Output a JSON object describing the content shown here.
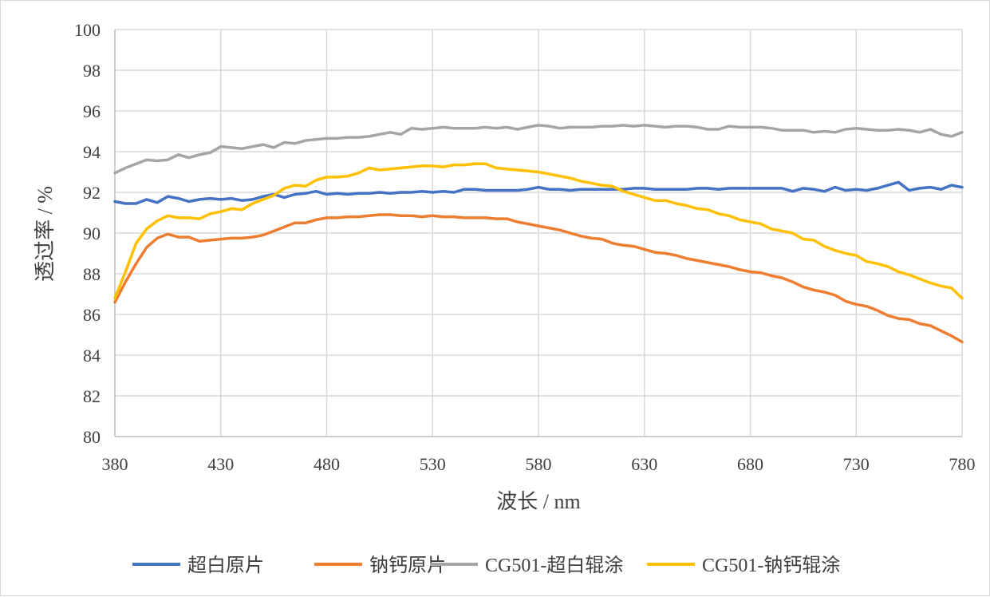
{
  "chart_data": {
    "type": "line",
    "xlabel": "波长 / nm",
    "ylabel": "透过率 / %",
    "xlim": [
      380,
      780
    ],
    "ylim": [
      80,
      100
    ],
    "xticks": [
      380,
      430,
      480,
      530,
      580,
      630,
      680,
      730,
      780
    ],
    "yticks": [
      80,
      82,
      84,
      86,
      88,
      90,
      92,
      94,
      96,
      98,
      100
    ],
    "grid": true,
    "legend_position": "bottom",
    "series": [
      {
        "name": "超白原片",
        "color": "#4472c4",
        "x": [
          380,
          385,
          390,
          395,
          400,
          405,
          410,
          415,
          420,
          425,
          430,
          435,
          440,
          445,
          450,
          455,
          460,
          465,
          470,
          475,
          480,
          485,
          490,
          495,
          500,
          505,
          510,
          515,
          520,
          525,
          530,
          535,
          540,
          545,
          550,
          555,
          560,
          565,
          570,
          575,
          580,
          585,
          590,
          595,
          600,
          605,
          610,
          615,
          620,
          625,
          630,
          635,
          640,
          645,
          650,
          655,
          660,
          665,
          670,
          675,
          680,
          685,
          690,
          695,
          700,
          705,
          710,
          715,
          720,
          725,
          730,
          735,
          740,
          745,
          750,
          755,
          760,
          765,
          770,
          775,
          780
        ],
        "y": [
          91.55,
          91.45,
          91.45,
          91.65,
          91.5,
          91.8,
          91.7,
          91.55,
          91.65,
          91.7,
          91.65,
          91.7,
          91.6,
          91.65,
          91.8,
          91.9,
          91.75,
          91.9,
          91.95,
          92.05,
          91.9,
          91.95,
          91.9,
          91.95,
          91.95,
          92.0,
          91.95,
          92.0,
          92.0,
          92.05,
          92.0,
          92.05,
          92.0,
          92.15,
          92.15,
          92.1,
          92.1,
          92.1,
          92.1,
          92.15,
          92.25,
          92.15,
          92.15,
          92.1,
          92.15,
          92.15,
          92.15,
          92.15,
          92.15,
          92.2,
          92.2,
          92.15,
          92.15,
          92.15,
          92.15,
          92.2,
          92.2,
          92.15,
          92.2,
          92.2,
          92.2,
          92.2,
          92.2,
          92.2,
          92.05,
          92.2,
          92.15,
          92.05,
          92.25,
          92.1,
          92.15,
          92.1,
          92.2,
          92.35,
          92.5,
          92.1,
          92.2,
          92.25,
          92.15,
          92.35,
          92.25
        ]
      },
      {
        "name": "钠钙原片",
        "color": "#ed7d31",
        "x": [
          380,
          385,
          390,
          395,
          400,
          405,
          410,
          415,
          420,
          425,
          430,
          435,
          440,
          445,
          450,
          455,
          460,
          465,
          470,
          475,
          480,
          485,
          490,
          495,
          500,
          505,
          510,
          515,
          520,
          525,
          530,
          535,
          540,
          545,
          550,
          555,
          560,
          565,
          570,
          575,
          580,
          585,
          590,
          595,
          600,
          605,
          610,
          615,
          620,
          625,
          630,
          635,
          640,
          645,
          650,
          655,
          660,
          665,
          670,
          675,
          680,
          685,
          690,
          695,
          700,
          705,
          710,
          715,
          720,
          725,
          730,
          735,
          740,
          745,
          750,
          755,
          760,
          765,
          770,
          775,
          780
        ],
        "y": [
          86.6,
          87.6,
          88.5,
          89.3,
          89.75,
          89.95,
          89.8,
          89.8,
          89.6,
          89.65,
          89.7,
          89.75,
          89.75,
          89.8,
          89.9,
          90.1,
          90.3,
          90.5,
          90.5,
          90.65,
          90.75,
          90.75,
          90.8,
          90.8,
          90.85,
          90.9,
          90.9,
          90.85,
          90.85,
          90.8,
          90.85,
          90.8,
          90.8,
          90.75,
          90.75,
          90.75,
          90.7,
          90.7,
          90.55,
          90.45,
          90.35,
          90.25,
          90.15,
          90.0,
          89.85,
          89.75,
          89.7,
          89.5,
          89.4,
          89.35,
          89.2,
          89.05,
          89.0,
          88.9,
          88.75,
          88.65,
          88.55,
          88.45,
          88.35,
          88.2,
          88.1,
          88.05,
          87.9,
          87.8,
          87.6,
          87.35,
          87.2,
          87.1,
          86.95,
          86.65,
          86.5,
          86.4,
          86.2,
          85.95,
          85.8,
          85.75,
          85.55,
          85.45,
          85.2,
          84.95,
          84.65
        ]
      },
      {
        "name": "CG501-超白辊涂",
        "color": "#a5a5a5",
        "x": [
          380,
          385,
          390,
          395,
          400,
          405,
          410,
          415,
          420,
          425,
          430,
          435,
          440,
          445,
          450,
          455,
          460,
          465,
          470,
          475,
          480,
          485,
          490,
          495,
          500,
          505,
          510,
          515,
          520,
          525,
          530,
          535,
          540,
          545,
          550,
          555,
          560,
          565,
          570,
          575,
          580,
          585,
          590,
          595,
          600,
          605,
          610,
          615,
          620,
          625,
          630,
          635,
          640,
          645,
          650,
          655,
          660,
          665,
          670,
          675,
          680,
          685,
          690,
          695,
          700,
          705,
          710,
          715,
          720,
          725,
          730,
          735,
          740,
          745,
          750,
          755,
          760,
          765,
          770,
          775,
          780
        ],
        "y": [
          92.95,
          93.2,
          93.4,
          93.6,
          93.55,
          93.6,
          93.85,
          93.7,
          93.85,
          93.95,
          94.25,
          94.2,
          94.15,
          94.25,
          94.35,
          94.2,
          94.45,
          94.4,
          94.55,
          94.6,
          94.65,
          94.65,
          94.7,
          94.7,
          94.75,
          94.85,
          94.95,
          94.85,
          95.15,
          95.1,
          95.15,
          95.2,
          95.15,
          95.15,
          95.15,
          95.2,
          95.15,
          95.2,
          95.1,
          95.2,
          95.3,
          95.25,
          95.15,
          95.2,
          95.2,
          95.2,
          95.25,
          95.25,
          95.3,
          95.25,
          95.3,
          95.25,
          95.2,
          95.25,
          95.25,
          95.2,
          95.1,
          95.1,
          95.25,
          95.2,
          95.2,
          95.2,
          95.15,
          95.05,
          95.05,
          95.05,
          94.95,
          95.0,
          94.95,
          95.1,
          95.15,
          95.1,
          95.05,
          95.05,
          95.1,
          95.05,
          94.95,
          95.1,
          94.85,
          94.75,
          94.95
        ]
      },
      {
        "name": "CG501-钠钙辊涂",
        "color": "#ffc000",
        "x": [
          380,
          385,
          390,
          395,
          400,
          405,
          410,
          415,
          420,
          425,
          430,
          435,
          440,
          445,
          450,
          455,
          460,
          465,
          470,
          475,
          480,
          485,
          490,
          495,
          500,
          505,
          510,
          515,
          520,
          525,
          530,
          535,
          540,
          545,
          550,
          555,
          560,
          565,
          570,
          575,
          580,
          585,
          590,
          595,
          600,
          605,
          610,
          615,
          620,
          625,
          630,
          635,
          640,
          645,
          650,
          655,
          660,
          665,
          670,
          675,
          680,
          685,
          690,
          695,
          700,
          705,
          710,
          715,
          720,
          725,
          730,
          735,
          740,
          745,
          750,
          755,
          760,
          765,
          770,
          775,
          780
        ],
        "y": [
          86.8,
          88.1,
          89.5,
          90.2,
          90.6,
          90.85,
          90.75,
          90.75,
          90.7,
          90.95,
          91.05,
          91.2,
          91.15,
          91.45,
          91.65,
          91.85,
          92.2,
          92.35,
          92.3,
          92.6,
          92.75,
          92.75,
          92.8,
          92.95,
          93.2,
          93.1,
          93.15,
          93.2,
          93.25,
          93.3,
          93.3,
          93.25,
          93.35,
          93.35,
          93.4,
          93.4,
          93.2,
          93.15,
          93.1,
          93.05,
          93.0,
          92.9,
          92.8,
          92.7,
          92.55,
          92.45,
          92.35,
          92.3,
          92.05,
          91.9,
          91.75,
          91.6,
          91.6,
          91.45,
          91.35,
          91.2,
          91.15,
          90.95,
          90.85,
          90.65,
          90.55,
          90.45,
          90.2,
          90.1,
          90.0,
          89.7,
          89.65,
          89.35,
          89.15,
          89.0,
          88.9,
          88.6,
          88.5,
          88.35,
          88.1,
          87.95,
          87.75,
          87.55,
          87.4,
          87.3,
          86.8
        ]
      }
    ]
  }
}
